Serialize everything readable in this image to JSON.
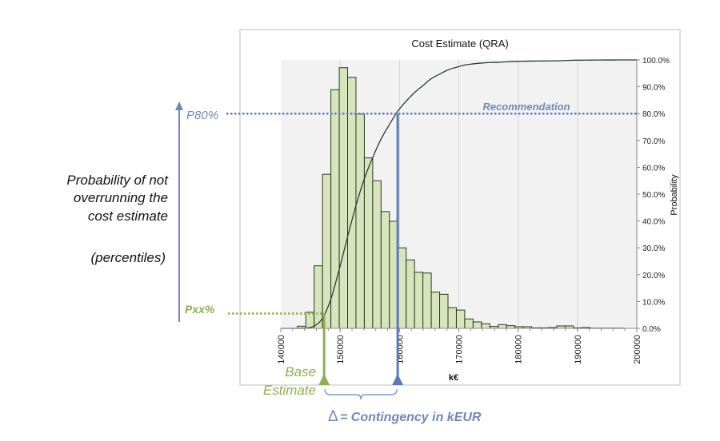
{
  "chart_data": {
    "type": "bar",
    "title": "Cost Estimate (QRA)",
    "xlabel": "k€",
    "ylabel": "Probability",
    "xlim": [
      140000,
      200000
    ],
    "ylim": [
      0,
      100
    ],
    "x_ticks": [
      "140000",
      "150000",
      "160000",
      "170000",
      "180000",
      "190000",
      "200000"
    ],
    "y_ticks": [
      "0.0%",
      "10.0%",
      "20.0%",
      "30.0%",
      "40.0%",
      "50.0%",
      "60.0%",
      "70.0%",
      "80.0%",
      "90.0%",
      "100.0%"
    ],
    "grid": "vertical",
    "histogram": {
      "bin_start": 142800,
      "bin_width": 1410,
      "values_scaled_to_percent_axis": [
        0.8,
        6,
        23.3,
        57.4,
        88.9,
        97.1,
        93.5,
        79.8,
        63.5,
        55,
        43.5,
        39.9,
        30,
        25.5,
        20.9,
        20.6,
        13.5,
        12.7,
        7.7,
        6.8,
        3.5,
        2.4,
        1.7,
        0.7,
        1.4,
        1.0,
        0.6,
        0.6,
        0.2,
        0.2,
        0.3,
        0.9,
        0.9,
        0.2,
        0.3,
        0.1,
        0.1,
        0.1,
        0.1
      ]
    },
    "cumulative_series": "cumulative probability (S-curve) computed from histogram",
    "colors": {
      "bar_fill": "#d7e4bd",
      "bar_stroke": "#2a3a1c",
      "curve": "#2b3b3b",
      "plot_bg": "#f2f2f2",
      "blue": "#5a7bb8",
      "green": "#8db04e"
    }
  },
  "annotations": {
    "left_text": [
      "Probability of not",
      "overrunning the",
      "cost estimate"
    ],
    "percentiles": "(percentiles)",
    "p80_label": "P80%",
    "p80_value": 80,
    "p80_cost": 159700,
    "recommendation": "Recommendation",
    "pxx_label": "Pxx%",
    "pxx_value": 5.5,
    "base_cost": 147300,
    "base_label_1": "Base",
    "base_label_2": "Estimate",
    "delta_symbol": "Δ",
    "contingency": "= Contingency in kEUR"
  }
}
